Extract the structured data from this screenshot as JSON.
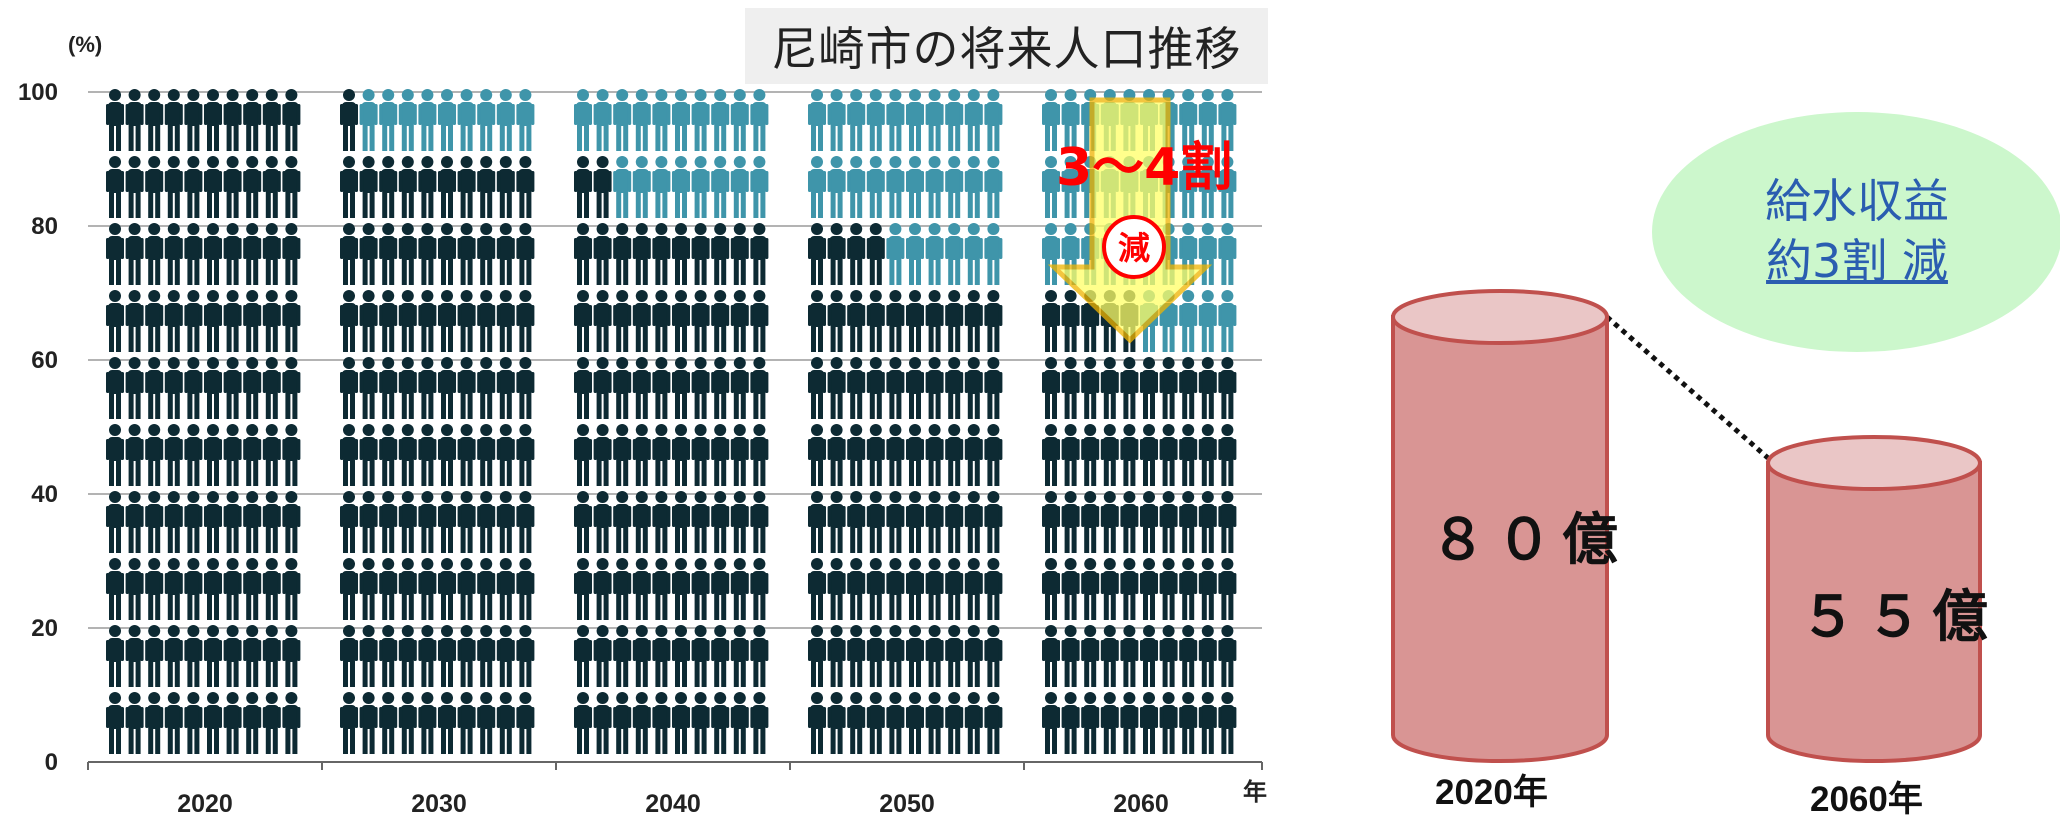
{
  "chart_data": {
    "type": "bar",
    "title": "尼崎市の将来人口推移",
    "ylabel": "(%)",
    "xlabel": "年",
    "categories": [
      "2020",
      "2030",
      "2040",
      "2050",
      "2060"
    ],
    "values": [
      100,
      91,
      82,
      74,
      65
    ],
    "ylim": [
      0,
      100
    ],
    "yticks": [
      "0",
      "20",
      "40",
      "60",
      "80",
      "100"
    ],
    "grid": true,
    "annotation": {
      "text": "3～4割",
      "badge": "減"
    },
    "colors": {
      "population": "#0d2a33",
      "decrease": "#3f95aa",
      "arrow_fill": "#ffff66",
      "arrow_stroke": "#f0b400",
      "annotation": "#ff0000"
    }
  },
  "revenue": {
    "bubble_line1": "給水収益",
    "bubble_line2": "約3割 減",
    "cylinders": [
      {
        "value_text": "８０億",
        "year": "2020年",
        "amount": 80
      },
      {
        "value_text": "５５億",
        "year": "2060年",
        "amount": 55
      }
    ],
    "colors": {
      "body": "#d99594",
      "top": "#eac6c6",
      "border": "#c0504d",
      "bubble": "#ccf7cc",
      "bubble_text": "#2a5db0"
    }
  }
}
